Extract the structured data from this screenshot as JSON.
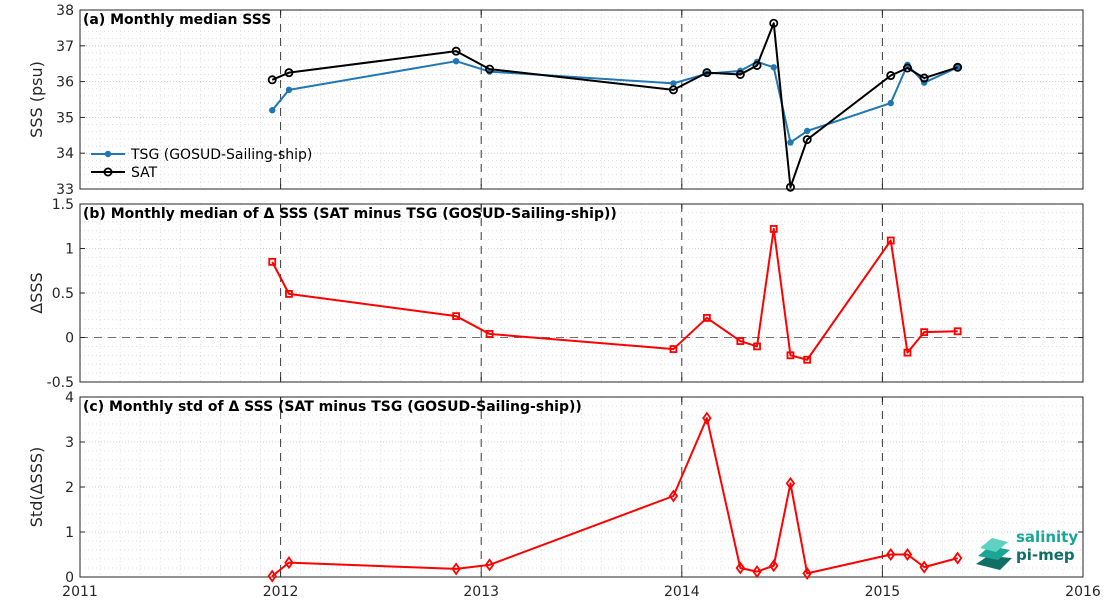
{
  "chart_data": [
    {
      "panel": "a",
      "type": "line",
      "title": "(a) Monthly median SSS",
      "ylabel": "SSS (psu)",
      "ylim": [
        33,
        38
      ],
      "yticks": [
        "33",
        "34",
        "35",
        "36",
        "37",
        "38"
      ],
      "legend_position": "left",
      "grid": true,
      "series": [
        {
          "name": "TSG (GOSUD-Sailing-ship)",
          "color": "#1f77b4",
          "marker": "dot",
          "x": [
            "2011-12",
            "2012-01",
            "2012-11",
            "2013-01",
            "2013-12",
            "2014-02",
            "2014-04",
            "2014-05",
            "2014-06",
            "2014-07",
            "2014-08",
            "2015-01",
            "2015-02",
            "2015-03",
            "2015-05"
          ],
          "y": [
            35.2,
            35.77,
            36.57,
            36.28,
            35.95,
            36.22,
            36.3,
            36.55,
            36.4,
            34.3,
            34.62,
            35.4,
            36.47,
            35.97,
            36.4
          ]
        },
        {
          "name": "SAT",
          "color": "#000000",
          "marker": "circle",
          "x": [
            "2011-12",
            "2012-01",
            "2012-11",
            "2013-01",
            "2013-12",
            "2014-02",
            "2014-04",
            "2014-05",
            "2014-06",
            "2014-07",
            "2014-08",
            "2015-01",
            "2015-02",
            "2015-03",
            "2015-05"
          ],
          "y": [
            36.05,
            36.25,
            36.85,
            36.35,
            35.77,
            36.25,
            36.2,
            36.45,
            37.63,
            33.05,
            34.38,
            36.17,
            36.38,
            36.1,
            36.4
          ]
        }
      ]
    },
    {
      "panel": "b",
      "type": "line",
      "title": "(b) Monthly median of Δ SSS (SAT minus TSG (GOSUD-Sailing-ship))",
      "ylabel": "ΔSSS",
      "ylim": [
        -0.5,
        1.5
      ],
      "yticks": [
        "-0.5",
        "0",
        "0.5",
        "1",
        "1.5"
      ],
      "zero_line": true,
      "grid": true,
      "series": [
        {
          "color": "#ff0000",
          "marker": "square",
          "x": [
            "2011-12",
            "2012-01",
            "2012-11",
            "2013-01",
            "2013-12",
            "2014-02",
            "2014-04",
            "2014-05",
            "2014-06",
            "2014-07",
            "2014-08",
            "2015-01",
            "2015-02",
            "2015-03",
            "2015-05"
          ],
          "y": [
            0.85,
            0.49,
            0.24,
            0.04,
            -0.13,
            0.22,
            -0.04,
            -0.1,
            1.22,
            -0.2,
            -0.25,
            1.09,
            -0.17,
            0.06,
            0.07
          ]
        }
      ]
    },
    {
      "panel": "c",
      "type": "line",
      "title": "(c) Monthly std of Δ SSS (SAT minus TSG (GOSUD-Sailing-ship))",
      "ylabel": "Std(ΔSSS)",
      "ylim": [
        0,
        4
      ],
      "yticks": [
        "0",
        "1",
        "2",
        "3",
        "4"
      ],
      "xticks": [
        "2011",
        "2012",
        "2013",
        "2014",
        "2015",
        "2016"
      ],
      "grid": true,
      "series": [
        {
          "color": "#ff0000",
          "marker": "diamond",
          "x": [
            "2011-12",
            "2012-01",
            "2012-11",
            "2013-01",
            "2013-12",
            "2014-02",
            "2014-04",
            "2014-05",
            "2014-06",
            "2014-07",
            "2014-08",
            "2015-01",
            "2015-02",
            "2015-03",
            "2015-05"
          ],
          "y": [
            0.02,
            0.32,
            0.18,
            0.27,
            1.8,
            3.53,
            0.2,
            0.12,
            0.25,
            2.08,
            0.08,
            0.5,
            0.5,
            0.22,
            0.42
          ]
        }
      ]
    }
  ],
  "logo": {
    "line1": "salinity",
    "line2": "pi-mep"
  }
}
